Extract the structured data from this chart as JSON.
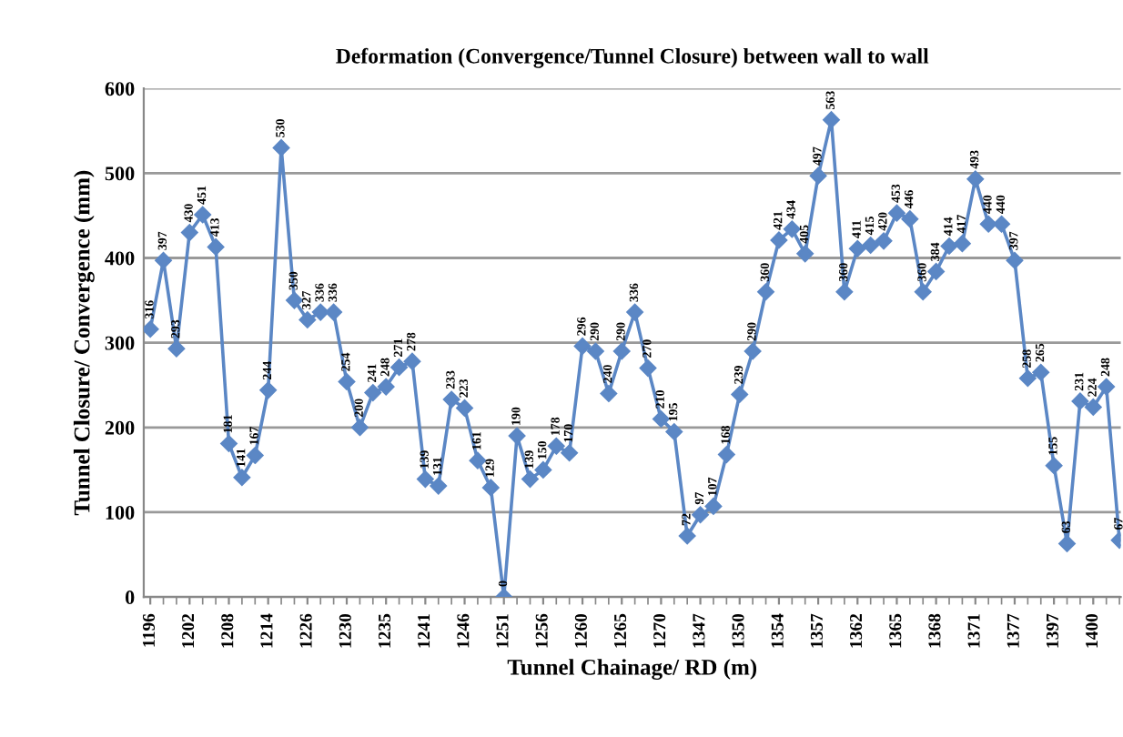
{
  "chart_data": {
    "type": "line",
    "title": "Deformation (Convergence/Tunnel Closure) between wall to wall",
    "xlabel": "Tunnel Chainage/ RD (m)",
    "ylabel": "Tunnel Closure/ Convergence (mm)",
    "categories": [
      "1196",
      null,
      null,
      "1202",
      null,
      null,
      "1208",
      null,
      null,
      "1214",
      null,
      null,
      "1226",
      null,
      null,
      "1230",
      null,
      null,
      "1235",
      null,
      null,
      "1241",
      null,
      null,
      "1246",
      null,
      null,
      "1251",
      null,
      null,
      "1256",
      null,
      null,
      "1260",
      null,
      null,
      "1265",
      null,
      null,
      "1270",
      null,
      null,
      "1347",
      null,
      null,
      "1350",
      null,
      null,
      "1354",
      null,
      null,
      "1357",
      null,
      null,
      "1362",
      null,
      null,
      "1365",
      null,
      null,
      "1368",
      null,
      null,
      "1371",
      null,
      null,
      "1377",
      null,
      null,
      "1397",
      null,
      null,
      "1400",
      null,
      null
    ],
    "series": [
      {
        "color": "#5b87c5",
        "values": [
          316,
          397,
          293,
          430,
          451,
          413,
          181,
          141,
          167,
          244,
          530,
          350,
          327,
          336,
          336,
          254,
          200,
          241,
          248,
          271,
          278,
          139,
          131,
          233,
          223,
          161,
          129,
          0,
          190,
          139,
          150,
          178,
          170,
          296,
          290,
          240,
          290,
          336,
          270,
          210,
          195,
          72,
          97,
          107,
          168,
          239,
          290,
          360,
          421,
          434,
          405,
          497,
          563,
          360,
          411,
          415,
          420,
          453,
          446,
          360,
          384,
          414,
          417,
          493,
          440,
          440,
          397,
          258,
          265,
          155,
          63,
          231,
          224,
          248,
          67
        ]
      }
    ],
    "ylim": [
      0,
      600
    ],
    "yticks": [
      0,
      100,
      200,
      300,
      400,
      500,
      600
    ],
    "grid": "y",
    "marker": "diamond",
    "line_style": "solid",
    "data_labels": true,
    "legend": false
  }
}
